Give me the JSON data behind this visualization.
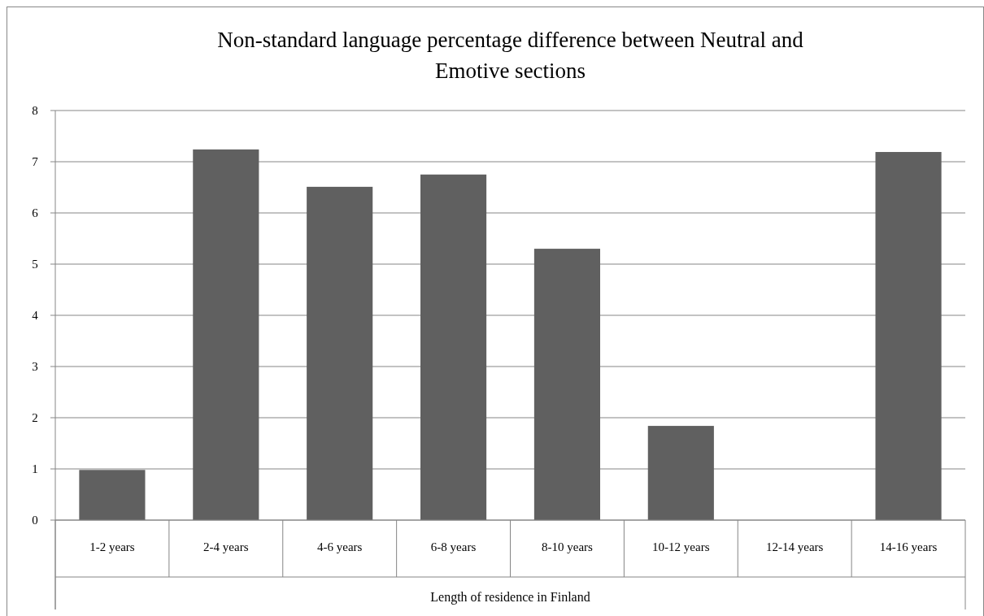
{
  "chart_data": {
    "type": "bar",
    "title": "Non-standard language percentage difference between Neutral and Emotive sections",
    "xlabel": "Length of residence in Finland",
    "categories": [
      "1-2 years",
      "2-4 years",
      "4-6 years",
      "6-8 years",
      "8-10 years",
      "10-12 years",
      "12-14 years",
      "14-16 years"
    ],
    "values": [
      0.98,
      7.24,
      6.51,
      6.75,
      5.3,
      1.84,
      0,
      7.19
    ],
    "color": "#606060",
    "ylim": [
      0,
      8
    ],
    "yticks": [
      0,
      1,
      2,
      3,
      4,
      5,
      6,
      7,
      8
    ],
    "grid": "y"
  }
}
